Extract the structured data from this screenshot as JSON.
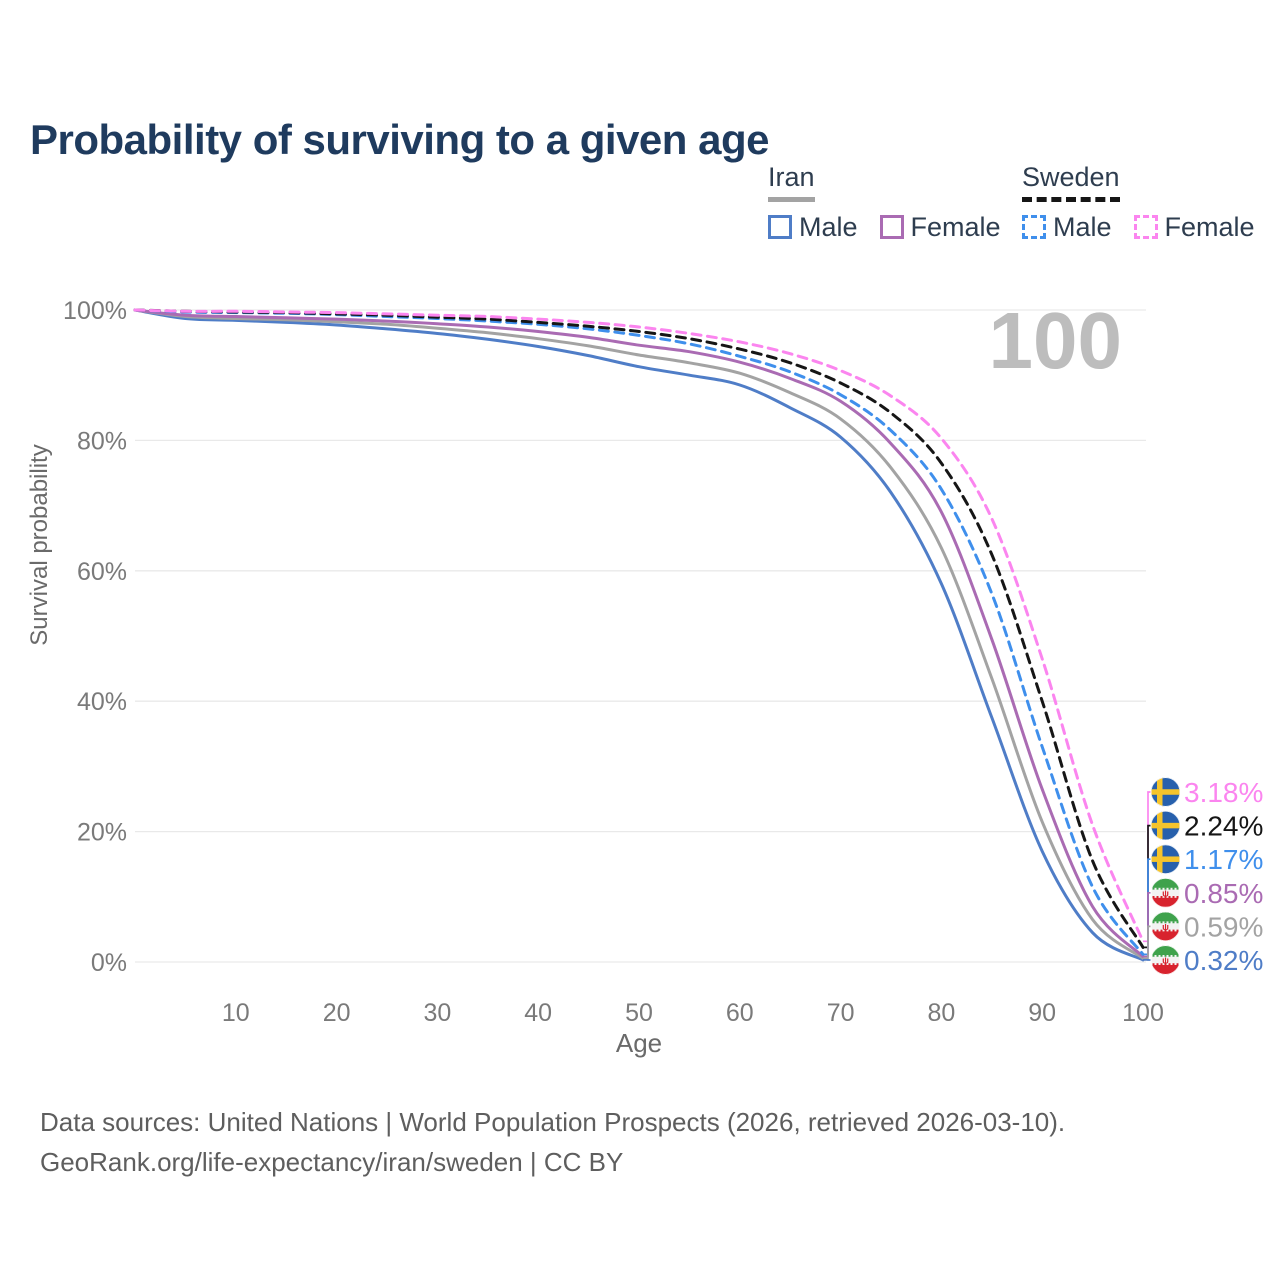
{
  "header": {
    "title": "Probability of surviving to a given age"
  },
  "legend": {
    "groups": [
      {
        "label": "Iran",
        "line_style": "solid",
        "items": [
          {
            "label": "Male"
          },
          {
            "label": "Female"
          }
        ]
      },
      {
        "label": "Sweden",
        "line_style": "dashed",
        "items": [
          {
            "label": "Male"
          },
          {
            "label": "Female"
          }
        ]
      }
    ]
  },
  "chart_data": {
    "type": "line",
    "title": "Probability of surviving to a given age",
    "xlabel": "Age",
    "ylabel": "Survival probability",
    "watermark": "100",
    "xlim": [
      0,
      100
    ],
    "ylim": [
      0,
      100
    ],
    "grid": "horizontal",
    "x_ticks": [
      10,
      20,
      30,
      40,
      50,
      60,
      70,
      80,
      90,
      100
    ],
    "y_tick_values": [
      0,
      20,
      40,
      60,
      80,
      100
    ],
    "y_tick_labels": [
      "0%",
      "20%",
      "40%",
      "60%",
      "80%",
      "100%"
    ],
    "ages": [
      0,
      5,
      10,
      15,
      20,
      25,
      30,
      35,
      40,
      45,
      50,
      55,
      60,
      65,
      70,
      75,
      80,
      85,
      90,
      95,
      100
    ],
    "series": [
      {
        "name": "Iran Male",
        "country": "iran",
        "sex": "male",
        "color": "#4f7dc7",
        "dashed": false,
        "end_label": "0.32%",
        "values": [
          100,
          98.7,
          98.4,
          98.1,
          97.7,
          97.1,
          96.4,
          95.5,
          94.4,
          93.0,
          91.3,
          90.0,
          88.5,
          85.0,
          80.5,
          72.0,
          58.0,
          37.5,
          17.0,
          4.5,
          0.32
        ]
      },
      {
        "name": "Iran",
        "country": "iran",
        "sex": "both",
        "color": "#a3a3a3",
        "dashed": false,
        "end_label": "0.59%",
        "values": [
          100,
          99.0,
          98.7,
          98.5,
          98.2,
          97.8,
          97.2,
          96.5,
          95.6,
          94.5,
          93.1,
          91.9,
          90.3,
          87.3,
          83.3,
          75.8,
          63.5,
          43.5,
          21.5,
          6.5,
          0.59
        ]
      },
      {
        "name": "Iran Female",
        "country": "iran",
        "sex": "female",
        "color": "#aa6bb3",
        "dashed": false,
        "end_label": "0.85%",
        "values": [
          100,
          99.2,
          99.0,
          98.8,
          98.6,
          98.3,
          97.9,
          97.4,
          96.7,
          95.8,
          94.6,
          93.6,
          92.0,
          89.5,
          86.0,
          79.5,
          69.0,
          49.5,
          26.5,
          8.5,
          0.85
        ]
      },
      {
        "name": "Sweden Male",
        "country": "sweden",
        "sex": "male",
        "color": "#3f8fec",
        "dashed": true,
        "end_label": "1.17%",
        "values": [
          100,
          99.7,
          99.6,
          99.5,
          99.3,
          99.0,
          98.7,
          98.3,
          97.8,
          97.1,
          96.1,
          94.8,
          92.9,
          90.5,
          87.0,
          81.5,
          72.5,
          56.5,
          33.0,
          11.5,
          1.17
        ]
      },
      {
        "name": "Sweden",
        "country": "sweden",
        "sex": "both",
        "color": "#161616",
        "dashed": true,
        "end_label": "2.24%",
        "values": [
          100,
          99.8,
          99.7,
          99.6,
          99.4,
          99.2,
          98.9,
          98.6,
          98.1,
          97.5,
          96.7,
          95.6,
          94.0,
          91.9,
          88.8,
          84.2,
          76.5,
          62.5,
          40.0,
          15.5,
          2.24
        ]
      },
      {
        "name": "Sweden Female",
        "country": "sweden",
        "sex": "female",
        "color": "#fb85ef",
        "dashed": true,
        "end_label": "3.18%",
        "values": [
          100,
          99.8,
          99.8,
          99.7,
          99.6,
          99.4,
          99.2,
          99.0,
          98.6,
          98.1,
          97.4,
          96.4,
          95.1,
          93.3,
          90.7,
          86.8,
          80.3,
          68.0,
          46.5,
          21.0,
          3.18
        ]
      }
    ]
  },
  "colors": {
    "title": "#1f3b5e",
    "legend_text": "#2e3d4f",
    "axis_text": "#7a7a7a",
    "axis_title": "#6a6a6a",
    "grid": "#e9e9e9",
    "watermark": "#bdbdbd",
    "footer_text": "#5e5e5e",
    "background": "#ffffff",
    "sweden_flag_blue": "#2760ac",
    "sweden_flag_yellow": "#f5c42c",
    "iran_flag_green": "#3fa24c",
    "iran_flag_white": "#f3f3f3",
    "iran_flag_red": "#d8232e"
  },
  "footer": {
    "line1": "Data sources: United Nations | World Population Prospects (2026, retrieved 2026-03-10).",
    "line2": "GeoRank.org/life-expectancy/iran/sweden | CC BY"
  }
}
